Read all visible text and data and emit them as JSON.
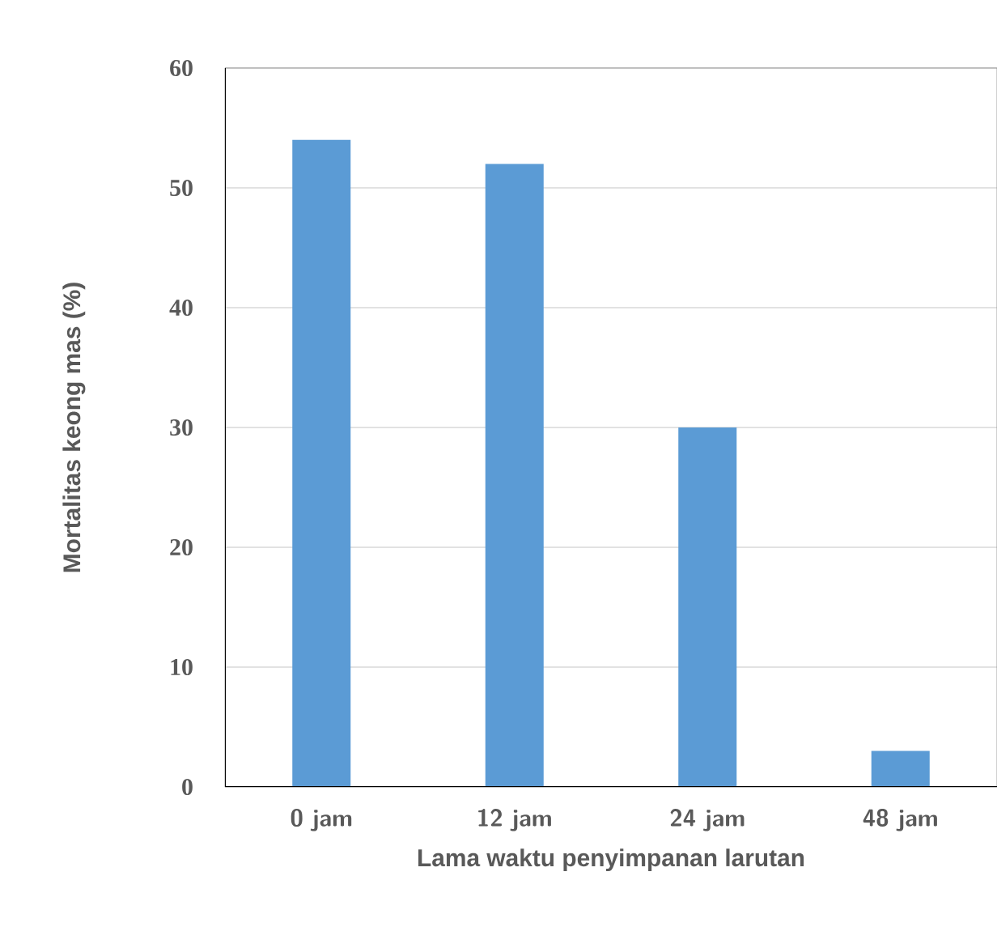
{
  "chart_data": {
    "type": "bar",
    "xlabel": "Lama waktu penyimpanan larutan",
    "ylabel": "Mortalitas keong mas (%)",
    "categories": [
      "0 jam",
      "12 jam",
      "24 jam",
      "48 jam"
    ],
    "values": [
      54,
      52,
      30,
      3
    ],
    "color": "#5b9bd5",
    "ylim": [
      0,
      60
    ],
    "yticks": [
      0,
      10,
      20,
      30,
      40,
      50,
      60
    ],
    "grid": "y"
  }
}
